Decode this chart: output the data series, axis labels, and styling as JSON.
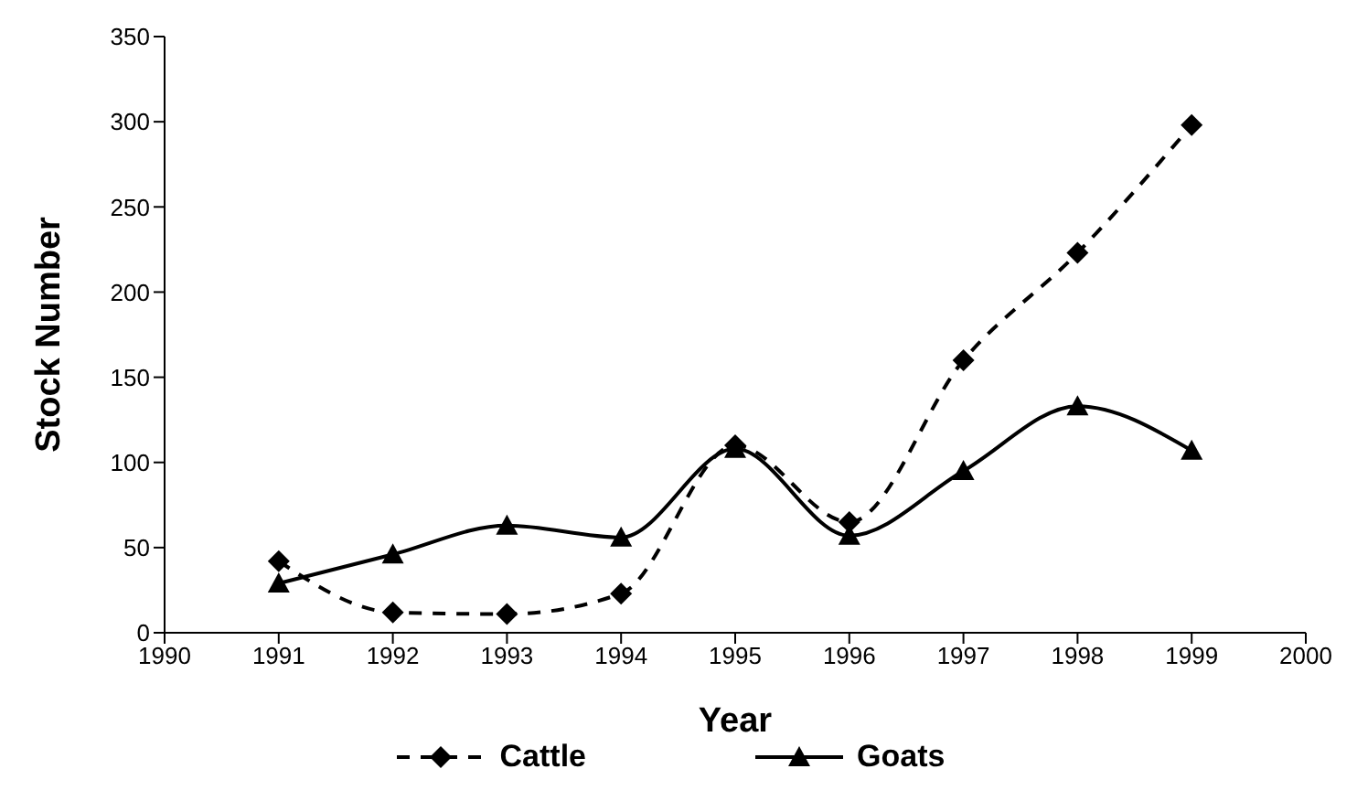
{
  "chart_data": {
    "type": "line",
    "xlabel": "Year",
    "ylabel": "Stock Number",
    "x": [
      1991,
      1992,
      1993,
      1994,
      1995,
      1996,
      1997,
      1998,
      1999
    ],
    "xlim": [
      1990,
      2000
    ],
    "xticks": [
      1990,
      1991,
      1992,
      1993,
      1994,
      1995,
      1996,
      1997,
      1998,
      1999,
      2000
    ],
    "ylim": [
      0,
      350
    ],
    "yticks": [
      0,
      50,
      100,
      150,
      200,
      250,
      300,
      350
    ],
    "grid": false,
    "legend": "bottom",
    "series": [
      {
        "name": "Cattle",
        "color": "#000000",
        "marker": "diamond",
        "line_style": "dashed",
        "values": [
          42,
          12,
          11,
          23,
          110,
          65,
          160,
          223,
          298
        ]
      },
      {
        "name": "Goats",
        "color": "#000000",
        "marker": "triangle",
        "line_style": "solid",
        "values": [
          29,
          46,
          63,
          56,
          108,
          57,
          95,
          133,
          107
        ]
      }
    ]
  }
}
